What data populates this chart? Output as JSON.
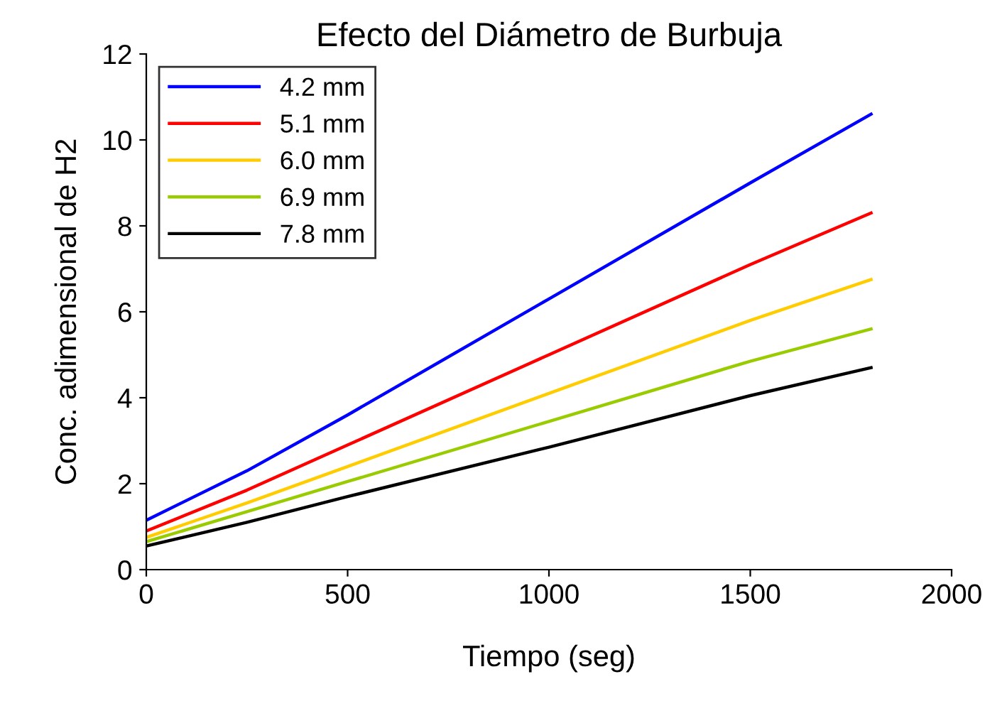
{
  "chart_data": {
    "type": "line",
    "title": "Efecto del Diámetro de Burbuja",
    "xlabel": "Tiempo (seg)",
    "ylabel": "Conc. adimensional de H2",
    "x": [
      0,
      250,
      500,
      1000,
      1500,
      1800
    ],
    "xlim": [
      0,
      2000
    ],
    "xticks": [
      0,
      500,
      1000,
      1500,
      2000
    ],
    "ylim": [
      0,
      12
    ],
    "yticks": [
      0,
      2,
      4,
      6,
      8,
      10,
      12
    ],
    "grid": false,
    "legend": "top left",
    "marker": "none",
    "line_style": "solid",
    "series": [
      {
        "name": "4.2 mm",
        "color": "#0000ff",
        "values": [
          1.15,
          2.3,
          3.6,
          6.3,
          9.0,
          10.6
        ]
      },
      {
        "name": "5.1 mm",
        "color": "#ff0000",
        "values": [
          0.9,
          1.85,
          2.9,
          5.0,
          7.1,
          8.3
        ]
      },
      {
        "name": "6.0 mm",
        "color": "#ffcc00",
        "values": [
          0.75,
          1.55,
          2.4,
          4.1,
          5.8,
          6.75
        ]
      },
      {
        "name": "6.9 mm",
        "color": "#99cc00",
        "values": [
          0.65,
          1.35,
          2.05,
          3.45,
          4.85,
          5.6
        ]
      },
      {
        "name": "7.8 mm",
        "color": "#000000",
        "values": [
          0.55,
          1.1,
          1.7,
          2.85,
          4.05,
          4.7
        ]
      }
    ]
  }
}
